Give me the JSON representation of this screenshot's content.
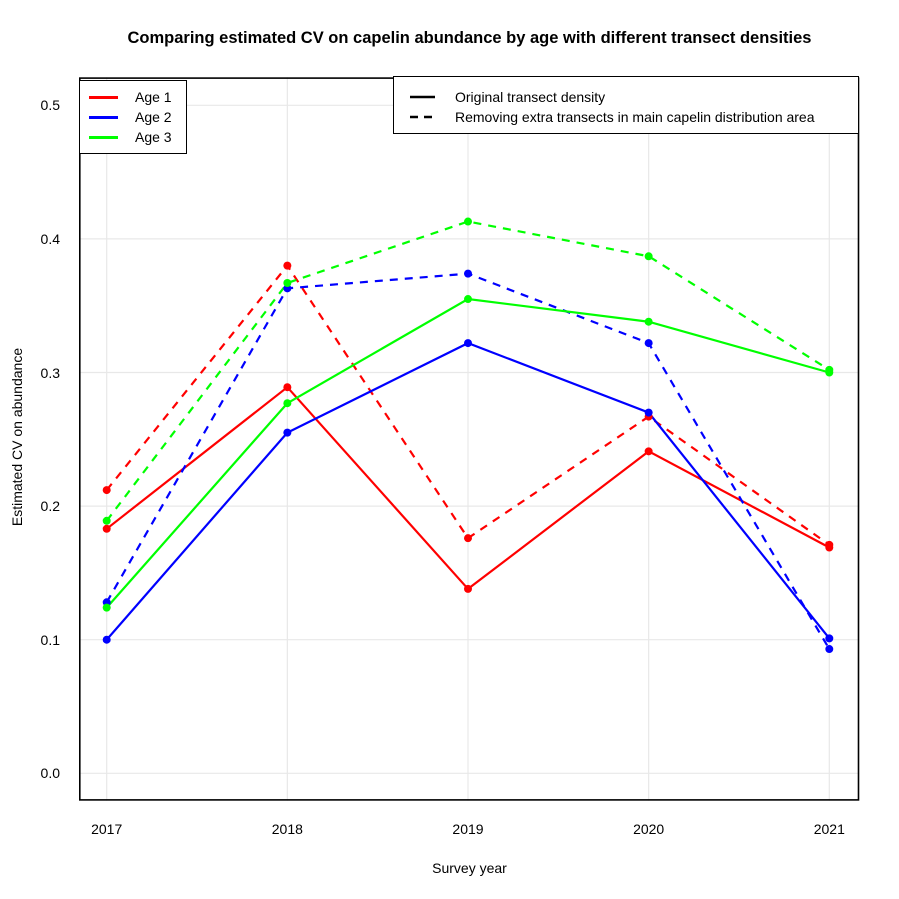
{
  "title": "Comparing estimated CV on capelin abundance by age with different transect densities",
  "axes": {
    "x_title": "Survey year",
    "y_title": "Estimated CV on abundance",
    "x_ticks": [
      "2017",
      "2018",
      "2019",
      "2020",
      "2021"
    ],
    "y_ticks": [
      "0.0",
      "0.1",
      "0.2",
      "0.3",
      "0.4",
      "0.5"
    ]
  },
  "legends": {
    "age": {
      "items": [
        {
          "label": "Age 1",
          "color": "#FF0000"
        },
        {
          "label": "Age 2",
          "color": "#0000FF"
        },
        {
          "label": "Age 3",
          "color": "#00FF00"
        }
      ]
    },
    "linetype": {
      "items": [
        {
          "label": "Original transect density",
          "style": "solid"
        },
        {
          "label": "Removing extra transects in main capelin distribution area",
          "style": "dashed"
        }
      ]
    }
  },
  "chart_data": {
    "type": "line",
    "title": "Comparing estimated CV on capelin abundance by age with different transect densities",
    "xlabel": "Survey year",
    "ylabel": "Estimated CV on abundance",
    "categories": [
      2017,
      2018,
      2019,
      2020,
      2021
    ],
    "ylim": [
      0.0,
      0.5
    ],
    "y_tick_step": 0.1,
    "grid": "major gridlines only, light gray on white, black panel border",
    "legend_position": "top-left (age colors) and top-right (linetype) inside panel",
    "marker": "filled circle",
    "series": [
      {
        "name": "Age 1 - Original transect density",
        "age": "Age 1",
        "transect": "Original transect density",
        "color": "#FF0000",
        "linetype": "solid",
        "values": [
          0.183,
          0.289,
          0.138,
          0.241,
          0.169
        ]
      },
      {
        "name": "Age 1 - Removing extra transects in main capelin distribution area",
        "age": "Age 1",
        "transect": "Removing extra transects in main capelin distribution area",
        "color": "#FF0000",
        "linetype": "dashed",
        "values": [
          0.212,
          0.38,
          0.176,
          0.267,
          0.171
        ]
      },
      {
        "name": "Age 2 - Original transect density",
        "age": "Age 2",
        "transect": "Original transect density",
        "color": "#0000FF",
        "linetype": "solid",
        "values": [
          0.1,
          0.255,
          0.322,
          0.27,
          0.101
        ]
      },
      {
        "name": "Age 2 - Removing extra transects in main capelin distribution area",
        "age": "Age 2",
        "transect": "Removing extra transects in main capelin distribution area",
        "color": "#0000FF",
        "linetype": "dashed",
        "values": [
          0.128,
          0.363,
          0.374,
          0.322,
          0.093
        ]
      },
      {
        "name": "Age 3 - Original transect density",
        "age": "Age 3",
        "transect": "Original transect density",
        "color": "#00FF00",
        "linetype": "solid",
        "values": [
          0.124,
          0.277,
          0.355,
          0.338,
          0.3
        ]
      },
      {
        "name": "Age 3 - Removing extra transects in main capelin distribution area",
        "age": "Age 3",
        "transect": "Removing extra transects in main capelin distribution area",
        "color": "#00FF00",
        "linetype": "dashed",
        "values": [
          0.189,
          0.367,
          0.413,
          0.387,
          0.302
        ]
      }
    ]
  }
}
